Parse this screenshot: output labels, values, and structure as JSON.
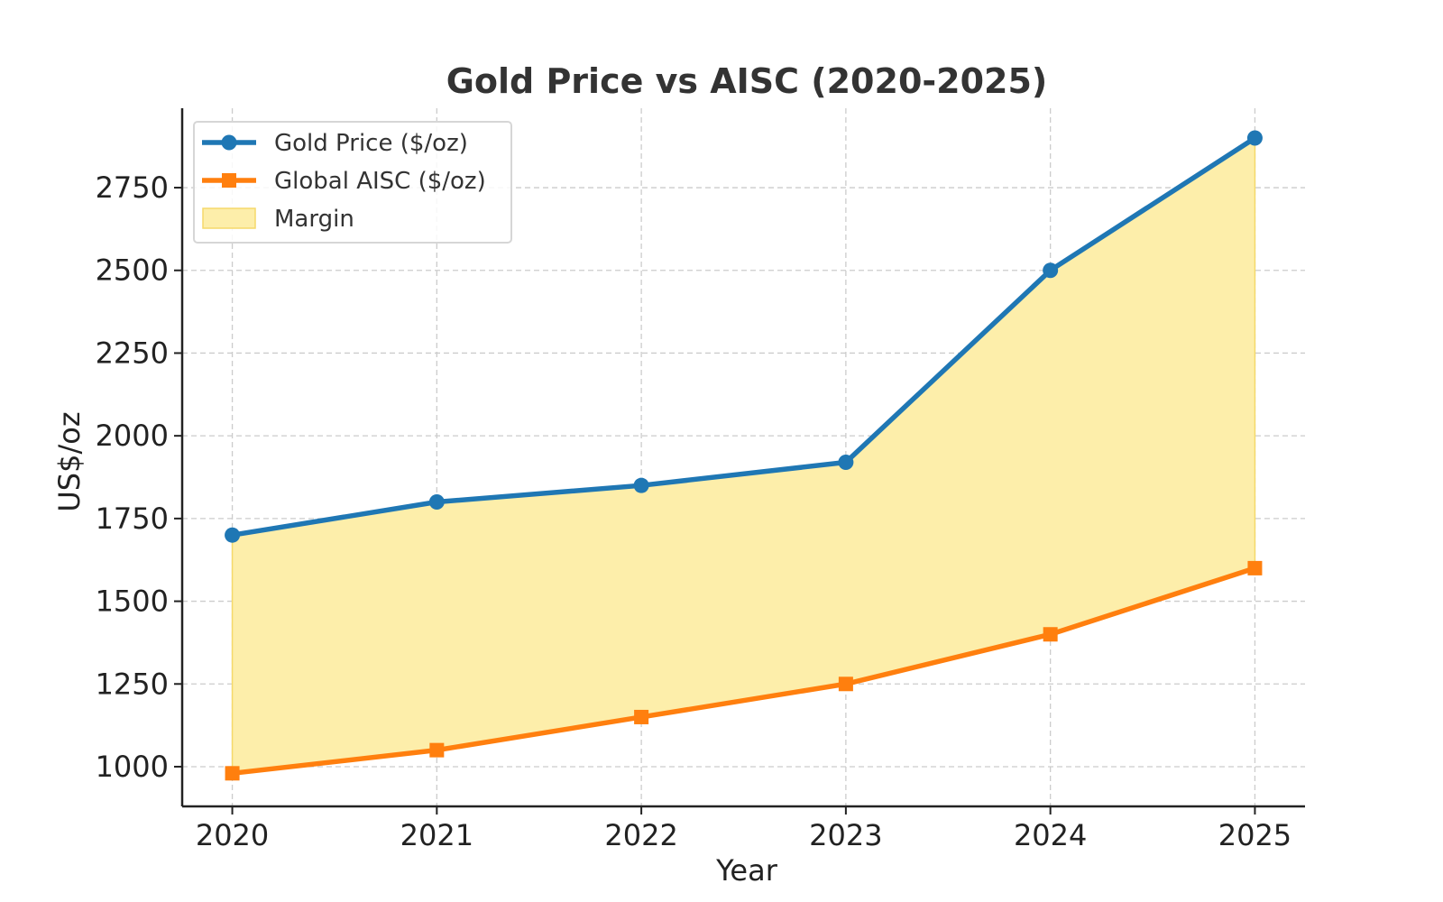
{
  "chart_data": {
    "type": "line",
    "title": "Gold Price vs AISC (2020-2025)",
    "xlabel": "Year",
    "ylabel": "US$/oz",
    "categories": [
      "2020",
      "2021",
      "2022",
      "2023",
      "2024",
      "2025"
    ],
    "x": [
      2020,
      2021,
      2022,
      2023,
      2024,
      2025
    ],
    "ylim": [
      880,
      2990
    ],
    "yticks": [
      1000,
      1250,
      1500,
      1750,
      2000,
      2250,
      2500,
      2750
    ],
    "grid": true,
    "legend_position": "top-left",
    "series": [
      {
        "name": "Gold Price ($/oz)",
        "marker": "circle",
        "color": "#1f77b4",
        "values": [
          1700,
          1800,
          1850,
          1920,
          2500,
          2900
        ]
      },
      {
        "name": "Global AISC ($/oz)",
        "marker": "square",
        "color": "#ff7f0e",
        "values": [
          980,
          1050,
          1150,
          1250,
          1400,
          1600
        ]
      }
    ],
    "fill": {
      "name": "Margin",
      "between": [
        "Gold Price ($/oz)",
        "Global AISC ($/oz)"
      ],
      "color": "#fdeeaa",
      "edge_color": "#f5d96b"
    }
  }
}
